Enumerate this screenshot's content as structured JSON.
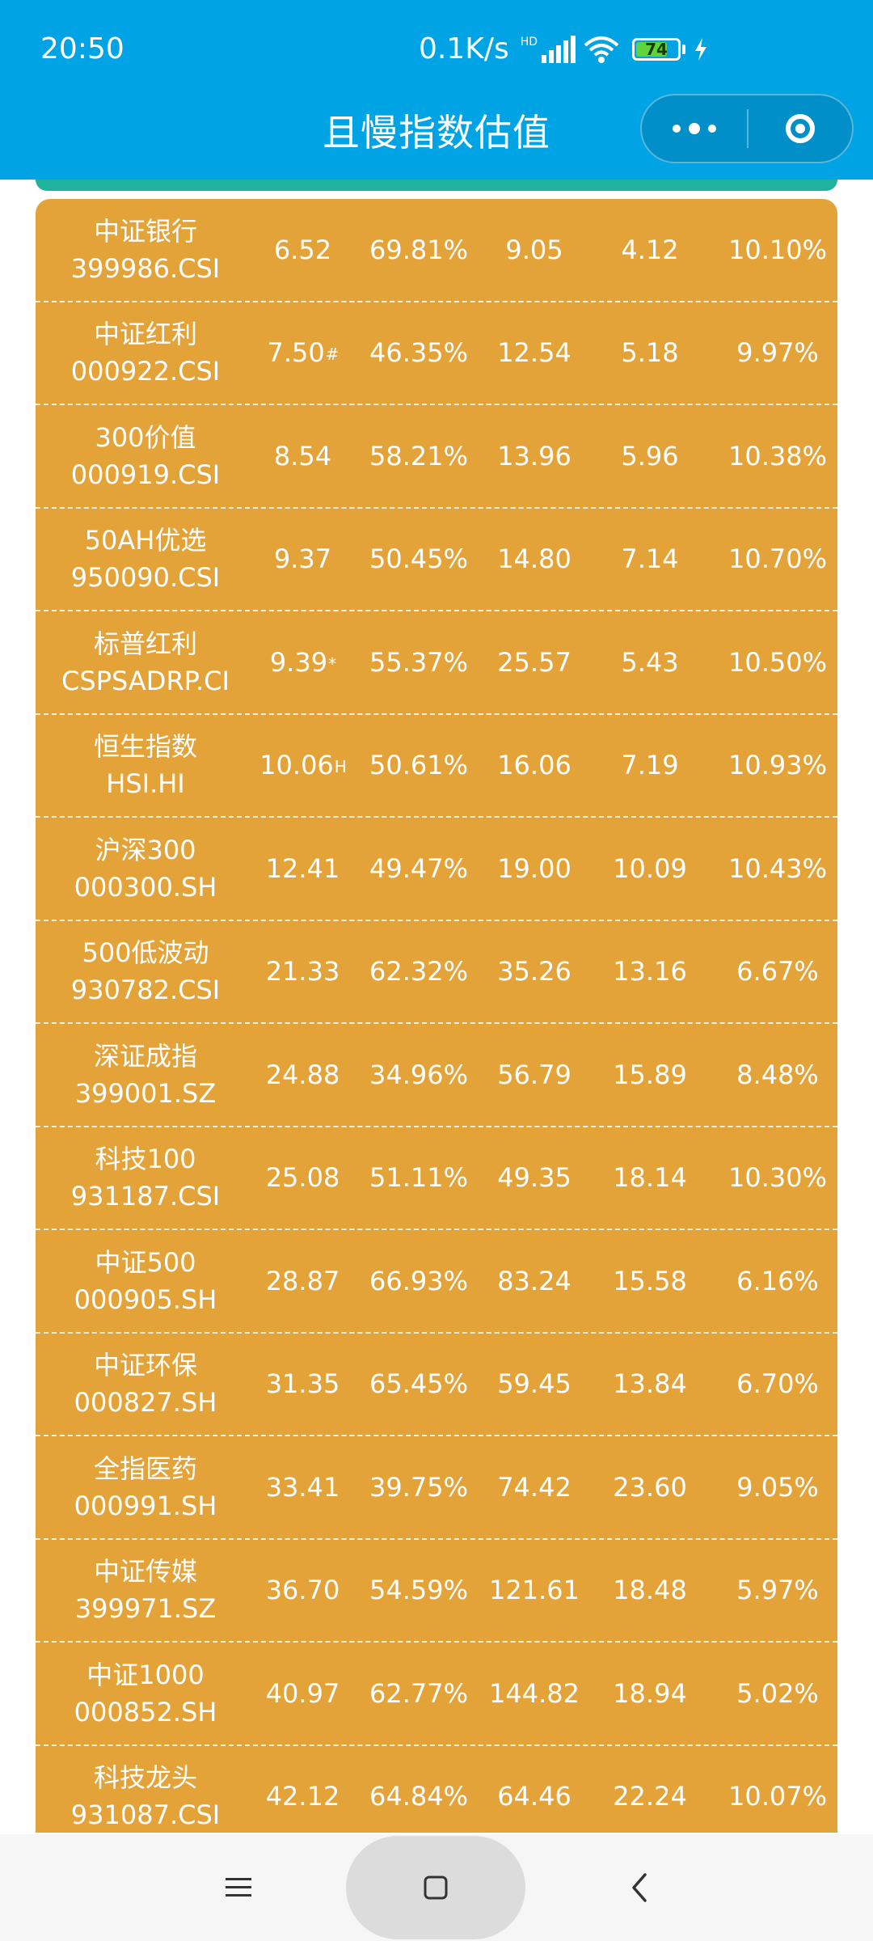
{
  "status_bar": {
    "time": "20:50",
    "network_speed": "0.1K/s",
    "signal_label": "HD",
    "battery_level": "74",
    "icons": [
      "signal-icon",
      "wifi-icon",
      "battery-icon",
      "charging-icon"
    ]
  },
  "header": {
    "title": "且慢指数估值",
    "background_color": "#00A3E4",
    "capsule_icons": [
      "more-icon",
      "close-icon"
    ]
  },
  "table": {
    "background_color": "#E4A339",
    "rows": [
      {
        "name": "中证银行",
        "code": "399986.CSI",
        "v1": "6.52",
        "v1_mark": "",
        "v2": "69.81%",
        "v3": "9.05",
        "v4": "4.12",
        "v5": "10.10%"
      },
      {
        "name": "中证红利",
        "code": "000922.CSI",
        "v1": "7.50",
        "v1_mark": "#",
        "v2": "46.35%",
        "v3": "12.54",
        "v4": "5.18",
        "v5": "9.97%"
      },
      {
        "name": "300价值",
        "code": "000919.CSI",
        "v1": "8.54",
        "v1_mark": "",
        "v2": "58.21%",
        "v3": "13.96",
        "v4": "5.96",
        "v5": "10.38%"
      },
      {
        "name": "50AH优选",
        "code": "950090.CSI",
        "v1": "9.37",
        "v1_mark": "",
        "v2": "50.45%",
        "v3": "14.80",
        "v4": "7.14",
        "v5": "10.70%"
      },
      {
        "name": "标普红利",
        "code": "CSPSADRP.CI",
        "v1": "9.39",
        "v1_mark": "*",
        "v2": "55.37%",
        "v3": "25.57",
        "v4": "5.43",
        "v5": "10.50%"
      },
      {
        "name": "恒生指数",
        "code": "HSI.HI",
        "v1": "10.06",
        "v1_mark": "H",
        "v2": "50.61%",
        "v3": "16.06",
        "v4": "7.19",
        "v5": "10.93%"
      },
      {
        "name": "沪深300",
        "code": "000300.SH",
        "v1": "12.41",
        "v1_mark": "",
        "v2": "49.47%",
        "v3": "19.00",
        "v4": "10.09",
        "v5": "10.43%"
      },
      {
        "name": "500低波动",
        "code": "930782.CSI",
        "v1": "21.33",
        "v1_mark": "",
        "v2": "62.32%",
        "v3": "35.26",
        "v4": "13.16",
        "v5": "6.67%"
      },
      {
        "name": "深证成指",
        "code": "399001.SZ",
        "v1": "24.88",
        "v1_mark": "",
        "v2": "34.96%",
        "v3": "56.79",
        "v4": "15.89",
        "v5": "8.48%"
      },
      {
        "name": "科技100",
        "code": "931187.CSI",
        "v1": "25.08",
        "v1_mark": "",
        "v2": "51.11%",
        "v3": "49.35",
        "v4": "18.14",
        "v5": "10.30%"
      },
      {
        "name": "中证500",
        "code": "000905.SH",
        "v1": "28.87",
        "v1_mark": "",
        "v2": "66.93%",
        "v3": "83.24",
        "v4": "15.58",
        "v5": "6.16%"
      },
      {
        "name": "中证环保",
        "code": "000827.SH",
        "v1": "31.35",
        "v1_mark": "",
        "v2": "65.45%",
        "v3": "59.45",
        "v4": "13.84",
        "v5": "6.70%"
      },
      {
        "name": "全指医药",
        "code": "000991.SH",
        "v1": "33.41",
        "v1_mark": "",
        "v2": "39.75%",
        "v3": "74.42",
        "v4": "23.60",
        "v5": "9.05%"
      },
      {
        "name": "中证传媒",
        "code": "399971.SZ",
        "v1": "36.70",
        "v1_mark": "",
        "v2": "54.59%",
        "v3": "121.61",
        "v4": "18.48",
        "v5": "5.97%"
      },
      {
        "name": "中证1000",
        "code": "000852.SH",
        "v1": "40.97",
        "v1_mark": "",
        "v2": "62.77%",
        "v3": "144.82",
        "v4": "18.94",
        "v5": "5.02%"
      },
      {
        "name": "科技龙头",
        "code": "931087.CSI",
        "v1": "42.12",
        "v1_mark": "",
        "v2": "64.84%",
        "v3": "64.46",
        "v4": "22.24",
        "v5": "10.07%"
      }
    ]
  },
  "nav_bar": {
    "icons": [
      "menu-icon",
      "home-icon",
      "back-icon"
    ]
  }
}
